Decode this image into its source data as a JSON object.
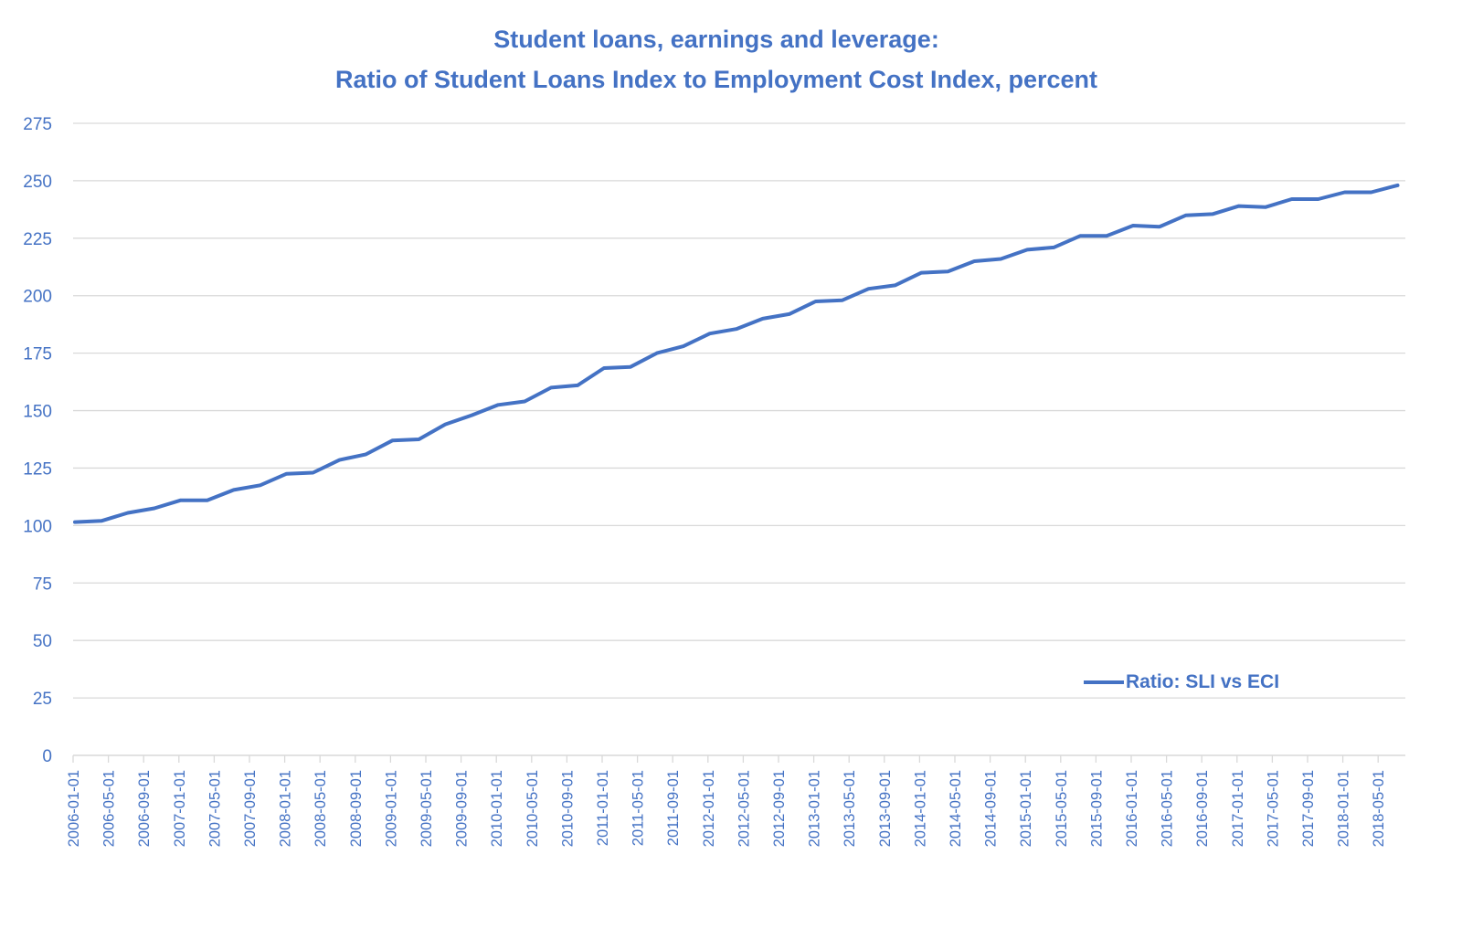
{
  "chart_data": {
    "type": "line",
    "title": "Student loans, earnings and leverage:",
    "subtitle": "Ratio of Student Loans Index to Employment Cost Index, percent",
    "xlabel": "",
    "ylabel": "",
    "ylim": [
      0,
      275
    ],
    "yticks": [
      0,
      25,
      50,
      75,
      100,
      125,
      150,
      175,
      200,
      225,
      250,
      275
    ],
    "grid": true,
    "legend_position": "lower right (inside plot)",
    "colors": {
      "series": "#4472c4",
      "text": "#4472c4",
      "grid": "#d9d9d9"
    },
    "xtick_labels": [
      "2006-01-01",
      "2006-05-01",
      "2006-09-01",
      "2007-01-01",
      "2007-05-01",
      "2007-09-01",
      "2008-01-01",
      "2008-05-01",
      "2008-09-01",
      "2009-01-01",
      "2009-05-01",
      "2009-09-01",
      "2010-01-01",
      "2010-05-01",
      "2010-09-01",
      "2011-01-01",
      "2011-05-01",
      "2011-09-01",
      "2012-01-01",
      "2012-05-01",
      "2012-09-01",
      "2013-01-01",
      "2013-05-01",
      "2013-09-01",
      "2014-01-01",
      "2014-05-01",
      "2014-09-01",
      "2015-01-01",
      "2015-05-01",
      "2015-09-01",
      "2016-01-01",
      "2016-05-01",
      "2016-09-01",
      "2017-01-01",
      "2017-05-01",
      "2017-09-01",
      "2018-01-01",
      "2018-05-01"
    ],
    "x": [
      "2006-01",
      "2006-04",
      "2006-07",
      "2006-10",
      "2007-01",
      "2007-04",
      "2007-07",
      "2007-10",
      "2008-01",
      "2008-04",
      "2008-07",
      "2008-10",
      "2009-01",
      "2009-04",
      "2009-07",
      "2009-10",
      "2010-01",
      "2010-04",
      "2010-07",
      "2010-10",
      "2011-01",
      "2011-04",
      "2011-07",
      "2011-10",
      "2012-01",
      "2012-04",
      "2012-07",
      "2012-10",
      "2013-01",
      "2013-04",
      "2013-07",
      "2013-10",
      "2014-01",
      "2014-04",
      "2014-07",
      "2014-10",
      "2015-01",
      "2015-04",
      "2015-07",
      "2015-10",
      "2016-01",
      "2016-04",
      "2016-07",
      "2016-10",
      "2017-01",
      "2017-04",
      "2017-07",
      "2017-10",
      "2018-01",
      "2018-04",
      "2018-07"
    ],
    "series": [
      {
        "name": "Ratio: SLI vs ECI",
        "values": [
          101.5,
          102,
          105.5,
          107.5,
          111,
          111,
          115.5,
          117.5,
          122.5,
          123,
          128.5,
          131,
          137,
          137.5,
          144,
          148,
          152.5,
          154,
          160,
          161,
          168.5,
          169,
          175,
          178,
          183.5,
          185.5,
          190,
          192,
          197.5,
          198,
          203,
          204.5,
          210,
          210.5,
          215,
          216,
          220,
          221,
          226,
          226,
          230.5,
          230,
          235,
          235.5,
          239,
          238.5,
          242,
          242,
          245,
          245,
          248
        ]
      }
    ]
  },
  "legend": {
    "label": "Ratio: SLI vs ECI"
  }
}
